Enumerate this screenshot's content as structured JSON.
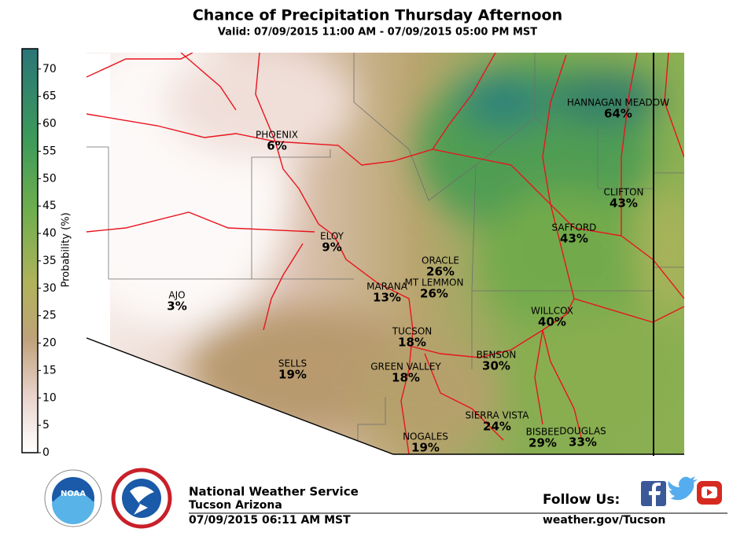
{
  "header": {
    "title": "Chance of Precipitation Thursday Afternoon",
    "subtitle": "Valid: 07/09/2015 11:00 AM - 07/09/2015 05:00 PM MST"
  },
  "colorbar": {
    "label": "Probability (%)",
    "lim": [
      0,
      73.7
    ],
    "ticks": [
      0,
      5,
      10,
      15,
      20,
      25,
      30,
      35,
      40,
      45,
      50,
      55,
      60,
      65,
      70
    ]
  },
  "cities": [
    {
      "name": "PHOENIX",
      "value_label": "6%"
    },
    {
      "name": "ELOY",
      "value_label": "9%"
    },
    {
      "name": "ORACLE",
      "value_label": "26%"
    },
    {
      "name": "MARANA",
      "value_label": "13%"
    },
    {
      "name": "MT LEMMON",
      "value_label": "26%"
    },
    {
      "name": "AJO",
      "value_label": "3%"
    },
    {
      "name": "TUCSON",
      "value_label": "18%"
    },
    {
      "name": "BENSON",
      "value_label": "30%"
    },
    {
      "name": "SELLS",
      "value_label": "19%"
    },
    {
      "name": "GREEN VALLEY",
      "value_label": "18%"
    },
    {
      "name": "SIERRA VISTA",
      "value_label": "24%"
    },
    {
      "name": "NOGALES",
      "value_label": "19%"
    },
    {
      "name": "BISBEE",
      "value_label": "29%"
    },
    {
      "name": "DOUGLAS",
      "value_label": "33%"
    },
    {
      "name": "WILLCOX",
      "value_label": "40%"
    },
    {
      "name": "SAFFORD",
      "value_label": "43%"
    },
    {
      "name": "CLIFTON",
      "value_label": "43%"
    },
    {
      "name": "HANNAGAN MEADOW",
      "value_label": "64%"
    }
  ],
  "footer": {
    "logo": "NOAA",
    "office": "National Weather Service",
    "location": "Tucson Arizona",
    "issued": "07/09/2015 06:11 AM MST",
    "follow": "Follow Us:",
    "website": "weather.gov/Tucson"
  }
}
